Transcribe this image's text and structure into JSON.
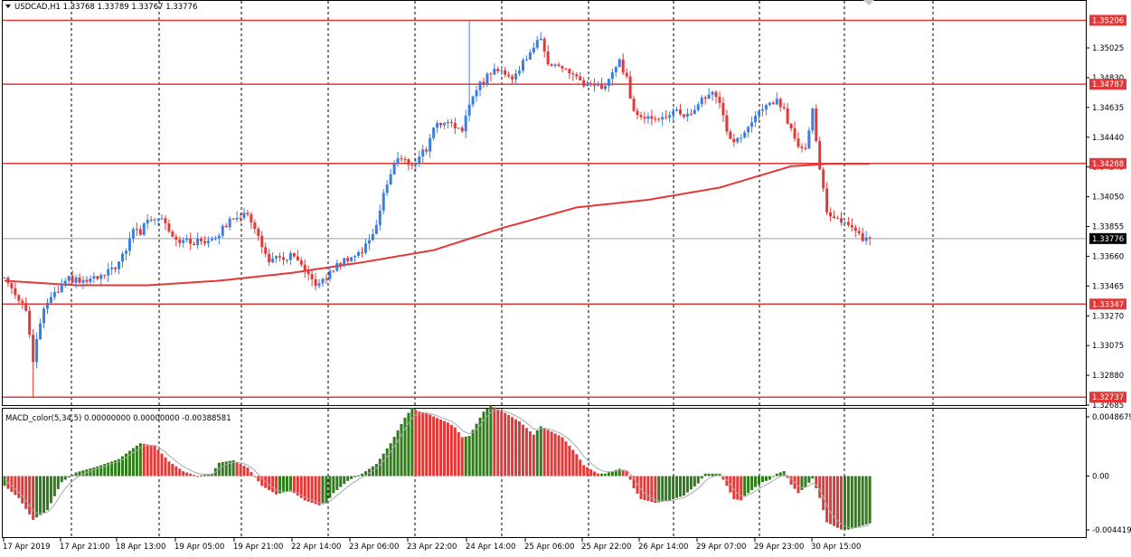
{
  "main": {
    "symbol_header": "USDCAD,H1  1.33768 1.33789 1.33767 1.33776",
    "price_labels": [
      {
        "label": "1.35025",
        "value": 1.35025
      },
      {
        "label": "1.34830",
        "value": 1.3483
      },
      {
        "label": "1.34635",
        "value": 1.34635
      },
      {
        "label": "1.34440",
        "value": 1.3444
      },
      {
        "label": "1.34245",
        "value": 1.34245
      },
      {
        "label": "1.34050",
        "value": 1.3405
      },
      {
        "label": "1.33855",
        "value": 1.33855
      },
      {
        "label": "1.33660",
        "value": 1.3366
      },
      {
        "label": "1.33465",
        "value": 1.33465
      },
      {
        "label": "1.33270",
        "value": 1.3327
      },
      {
        "label": "1.33075",
        "value": 1.33075
      },
      {
        "label": "1.32880",
        "value": 1.3288
      },
      {
        "label": "1.32685",
        "value": 1.32685
      }
    ],
    "levels": [
      {
        "label": "1.35206",
        "value": 1.35206
      },
      {
        "label": "1.34787",
        "value": 1.34787
      },
      {
        "label": "1.34268",
        "value": 1.34268
      },
      {
        "label": "1.33347",
        "value": 1.33347
      },
      {
        "label": "1.32737",
        "value": 1.32737
      }
    ],
    "current_price": {
      "label": "1.33776",
      "value": 1.33776
    }
  },
  "macd": {
    "header": "MACD_color(5,34,5) 0.00000000 0.00000000 -0.00388581",
    "scale_labels": [
      {
        "label": "0.0048679",
        "value": 0.0048679
      },
      {
        "label": "0.00",
        "value": 0
      },
      {
        "label": "-0.0044190",
        "value": -0.004419
      }
    ]
  },
  "time_labels": [
    "17 Apr 2019",
    "17 Apr 21:00",
    "18 Apr 13:00",
    "19 Apr 05:00",
    "19 Apr 21:00",
    "22 Apr 14:00",
    "23 Apr 06:00",
    "23 Apr 22:00",
    "24 Apr 14:00",
    "25 Apr 06:00",
    "25 Apr 22:00",
    "26 Apr 14:00",
    "29 Apr 07:00",
    "29 Apr 23:00",
    "30 Apr 15:00"
  ],
  "colors": {
    "bull": "#3a7fe0",
    "bear": "#e23838",
    "ma": "#e23838",
    "level": "#e23838",
    "macd_pos": "#2e7d1a",
    "macd_neg": "#e23838",
    "macd_signal": "#a9a9a9",
    "grid": "#000000"
  },
  "chart_data": {
    "type": "candlestick",
    "symbol": "USDCAD",
    "timeframe": "H1",
    "close_path": [
      [
        0,
        1.3352
      ],
      [
        6,
        1.3332
      ],
      [
        8,
        1.3296
      ],
      [
        10,
        1.3323
      ],
      [
        12,
        1.3336
      ],
      [
        16,
        1.3345
      ],
      [
        18,
        1.3351
      ],
      [
        22,
        1.3349
      ],
      [
        28,
        1.3353
      ],
      [
        32,
        1.3362
      ],
      [
        34,
        1.3369
      ],
      [
        36,
        1.3385
      ],
      [
        38,
        1.3381
      ],
      [
        40,
        1.3391
      ],
      [
        44,
        1.3392
      ],
      [
        46,
        1.3384
      ],
      [
        48,
        1.3377
      ],
      [
        52,
        1.3375
      ],
      [
        56,
        1.3376
      ],
      [
        60,
        1.3381
      ],
      [
        64,
        1.3392
      ],
      [
        66,
        1.3393
      ],
      [
        68,
        1.3392
      ],
      [
        70,
        1.3386
      ],
      [
        72,
        1.3371
      ],
      [
        74,
        1.3364
      ],
      [
        78,
        1.3364
      ],
      [
        80,
        1.3366
      ],
      [
        82,
        1.3363
      ],
      [
        84,
        1.3354
      ],
      [
        88,
        1.3347
      ],
      [
        90,
        1.3352
      ],
      [
        92,
        1.3358
      ],
      [
        96,
        1.3365
      ],
      [
        100,
        1.3369
      ],
      [
        102,
        1.3377
      ],
      [
        104,
        1.3387
      ],
      [
        106,
        1.3407
      ],
      [
        108,
        1.3419
      ],
      [
        110,
        1.3432
      ],
      [
        112,
        1.3429
      ],
      [
        114,
        1.3424
      ],
      [
        116,
        1.3433
      ],
      [
        118,
        1.3436
      ],
      [
        120,
        1.3451
      ],
      [
        124,
        1.3455
      ],
      [
        126,
        1.3452
      ],
      [
        128,
        1.3446
      ],
      [
        130,
        1.3466
      ],
      [
        132,
        1.3477
      ],
      [
        134,
        1.3481
      ],
      [
        136,
        1.3487
      ],
      [
        140,
        1.3487
      ],
      [
        142,
        1.3482
      ],
      [
        144,
        1.3489
      ],
      [
        146,
        1.3497
      ],
      [
        148,
        1.3504
      ],
      [
        150,
        1.3507
      ],
      [
        152,
        1.3494
      ],
      [
        156,
        1.3489
      ],
      [
        160,
        1.3484
      ],
      [
        162,
        1.3477
      ],
      [
        166,
        1.3477
      ],
      [
        168,
        1.3477
      ],
      [
        170,
        1.3487
      ],
      [
        172,
        1.3493
      ],
      [
        174,
        1.3482
      ],
      [
        176,
        1.3461
      ],
      [
        178,
        1.3456
      ],
      [
        180,
        1.3459
      ],
      [
        184,
        1.3456
      ],
      [
        188,
        1.3461
      ],
      [
        192,
        1.3457
      ],
      [
        194,
        1.3467
      ],
      [
        196,
        1.3471
      ],
      [
        198,
        1.3472
      ],
      [
        200,
        1.3468
      ],
      [
        202,
        1.3447
      ],
      [
        204,
        1.3441
      ],
      [
        206,
        1.3445
      ],
      [
        208,
        1.3449
      ],
      [
        210,
        1.3457
      ],
      [
        212,
        1.3463
      ],
      [
        214,
        1.3465
      ],
      [
        216,
        1.3469
      ],
      [
        218,
        1.3461
      ],
      [
        220,
        1.3448
      ],
      [
        222,
        1.344
      ],
      [
        224,
        1.3438
      ],
      [
        226,
        1.3462
      ],
      [
        228,
        1.3424
      ],
      [
        230,
        1.3394
      ],
      [
        232,
        1.3389
      ],
      [
        234,
        1.339
      ],
      [
        236,
        1.3387
      ],
      [
        238,
        1.3382
      ],
      [
        240,
        1.3378
      ],
      [
        242,
        1.33776
      ]
    ],
    "moving_average": [
      [
        0,
        1.335
      ],
      [
        20,
        1.3347
      ],
      [
        40,
        1.3347
      ],
      [
        60,
        1.335
      ],
      [
        80,
        1.3355
      ],
      [
        100,
        1.3362
      ],
      [
        120,
        1.337
      ],
      [
        140,
        1.3385
      ],
      [
        160,
        1.3398
      ],
      [
        180,
        1.3403
      ],
      [
        200,
        1.3411
      ],
      [
        220,
        1.3425
      ],
      [
        230,
        1.34265
      ],
      [
        242,
        1.34265
      ]
    ],
    "levels": [
      1.35206,
      1.34787,
      1.34268,
      1.33347,
      1.32737
    ],
    "current_price": 1.33776,
    "time_labels": [
      "17 Apr 2019",
      "17 Apr 21:00",
      "18 Apr 13:00",
      "19 Apr 05:00",
      "19 Apr 21:00",
      "22 Apr 14:00",
      "23 Apr 06:00",
      "23 Apr 22:00",
      "24 Apr 14:00",
      "25 Apr 06:00",
      "25 Apr 22:00",
      "26 Apr 14:00",
      "29 Apr 07:00",
      "29 Apr 23:00",
      "30 Apr 15:00"
    ],
    "macd_path": [
      [
        0,
        -0.0008
      ],
      [
        4,
        -0.0018
      ],
      [
        8,
        -0.0036
      ],
      [
        12,
        -0.0028
      ],
      [
        16,
        -0.0005
      ],
      [
        20,
        0.0003
      ],
      [
        26,
        0.0008
      ],
      [
        32,
        0.0014
      ],
      [
        36,
        0.0023
      ],
      [
        38,
        0.0027
      ],
      [
        42,
        0.0025
      ],
      [
        46,
        0.0012
      ],
      [
        50,
        0.0004
      ],
      [
        54,
        0
      ],
      [
        58,
        0.0002
      ],
      [
        60,
        0.0011
      ],
      [
        64,
        0.0013
      ],
      [
        68,
        0.0007
      ],
      [
        72,
        -0.0008
      ],
      [
        76,
        -0.0015
      ],
      [
        80,
        -0.0012
      ],
      [
        84,
        -0.002
      ],
      [
        88,
        -0.0024
      ],
      [
        90,
        -0.0022
      ],
      [
        92,
        -0.0014
      ],
      [
        96,
        -0.0004
      ],
      [
        100,
        0.0002
      ],
      [
        104,
        0.001
      ],
      [
        108,
        0.0027
      ],
      [
        112,
        0.0048
      ],
      [
        114,
        0.0056
      ],
      [
        116,
        0.0053
      ],
      [
        118,
        0.0052
      ],
      [
        120,
        0.0049
      ],
      [
        124,
        0.0044
      ],
      [
        126,
        0.004
      ],
      [
        128,
        0.0032
      ],
      [
        130,
        0.0033
      ],
      [
        134,
        0.0053
      ],
      [
        136,
        0.0058
      ],
      [
        140,
        0.0052
      ],
      [
        144,
        0.0045
      ],
      [
        148,
        0.0034
      ],
      [
        150,
        0.0041
      ],
      [
        152,
        0.0038
      ],
      [
        156,
        0.0032
      ],
      [
        160,
        0.0018
      ],
      [
        162,
        0.0009
      ],
      [
        166,
        0.0002
      ],
      [
        168,
        0.0002
      ],
      [
        172,
        0.0006
      ],
      [
        174,
        0.0004
      ],
      [
        176,
        -0.001
      ],
      [
        178,
        -0.0019
      ],
      [
        182,
        -0.0022
      ],
      [
        186,
        -0.002
      ],
      [
        190,
        -0.0016
      ],
      [
        194,
        -0.0006
      ],
      [
        196,
        0.0002
      ],
      [
        200,
        0.0002
      ],
      [
        202,
        -0.0008
      ],
      [
        204,
        -0.0019
      ],
      [
        206,
        -0.002
      ],
      [
        208,
        -0.0014
      ],
      [
        210,
        -0.0009
      ],
      [
        212,
        -0.0005
      ],
      [
        214,
        -0.0003
      ],
      [
        216,
        0.0002
      ],
      [
        218,
        0.0004
      ],
      [
        220,
        -0.0007
      ],
      [
        222,
        -0.0014
      ],
      [
        224,
        -0.0009
      ],
      [
        226,
        -0.0002
      ],
      [
        228,
        -0.0018
      ],
      [
        230,
        -0.0038
      ],
      [
        234,
        -0.0044
      ],
      [
        236,
        -0.0044
      ],
      [
        242,
        -0.00388581
      ]
    ],
    "macd_scale": [
      -0.004419,
      0.0048679
    ]
  }
}
